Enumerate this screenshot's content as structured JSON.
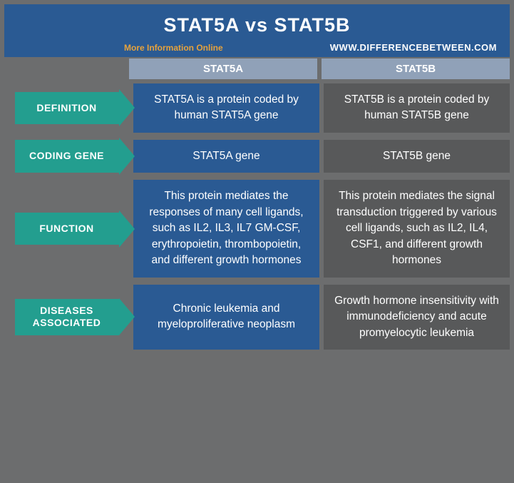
{
  "header": {
    "title": "STAT5A vs STAT5B",
    "more_info": "More Information Online",
    "site": "WWW.DIFFERENCEBETWEEN.COM"
  },
  "columns": {
    "a": "STAT5A",
    "b": "STAT5B"
  },
  "colors": {
    "header_bg": "#2a5a93",
    "col_header_bg": "#90a1b8",
    "label_bg": "#239e8f",
    "cell_a_bg": "#2a5a93",
    "cell_b_bg": "#58595a",
    "page_bg": "#6c6d6e",
    "more_color": "#e6a23c",
    "text_white": "#ffffff"
  },
  "rows": [
    {
      "label": "DEFINITION",
      "a": "STAT5A is a protein coded by human STAT5A gene",
      "b": "STAT5B is a protein coded by human STAT5B gene"
    },
    {
      "label": "CODING GENE",
      "a": "STAT5A gene",
      "b": "STAT5B gene"
    },
    {
      "label": "FUNCTION",
      "a": "This protein mediates the responses of many cell ligands, such as IL2, IL3, IL7 GM-CSF, erythropoietin, thrombopoietin, and different growth hormones",
      "b": "This protein mediates the signal transduction triggered by various cell ligands, such as IL2, IL4, CSF1, and different growth hormones"
    },
    {
      "label": "DISEASES ASSOCIATED",
      "a": "Chronic leukemia and myeloproliferative neoplasm",
      "b": "Growth hormone insensitivity with immunodeficiency and acute promyelocytic leukemia"
    }
  ]
}
